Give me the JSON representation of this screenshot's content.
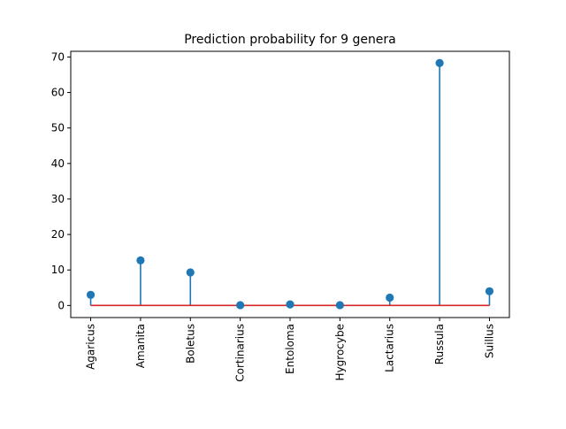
{
  "chart_data": {
    "type": "stem",
    "title": "Prediction probability for 9 genera",
    "xlabel": "",
    "ylabel": "",
    "categories": [
      "Agaricus",
      "Amanita",
      "Boletus",
      "Cortinarius",
      "Entoloma",
      "Hygrocybe",
      "Lactarius",
      "Russula",
      "Suillus"
    ],
    "values": [
      3.0,
      12.7,
      9.3,
      0.1,
      0.3,
      0.1,
      2.2,
      68.3,
      4.0
    ],
    "ylim": [
      -3.4,
      71.6
    ],
    "yticks": [
      0,
      10,
      20,
      30,
      40,
      50,
      60,
      70
    ],
    "baseline": 0,
    "grid": false,
    "colors": {
      "stem": "#1f77b4",
      "marker": "#1f77b4",
      "baseline": "#d62728"
    }
  }
}
